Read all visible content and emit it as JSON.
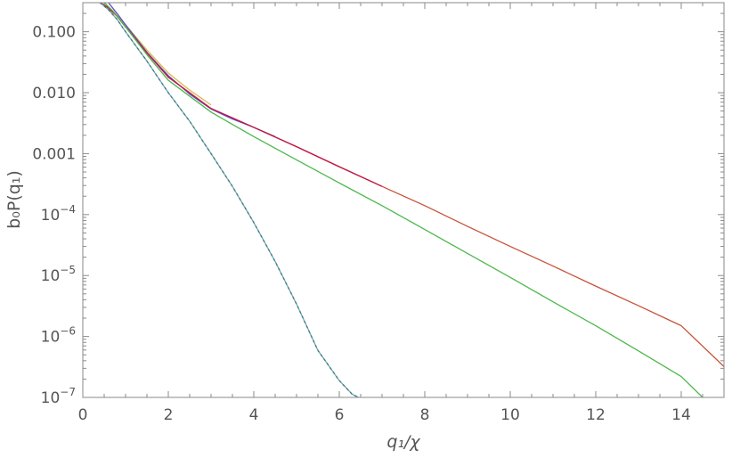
{
  "chart_data": {
    "type": "line",
    "title": "",
    "xlabel": "q₁/χ",
    "ylabel": "b₀P(q₁)",
    "y_scale": "log",
    "xlim": [
      0,
      15
    ],
    "ylim": [
      1e-07,
      0.3
    ],
    "grid": false,
    "x_ticks": [
      0,
      2,
      4,
      6,
      8,
      10,
      12,
      14
    ],
    "x_tick_labels": [
      "0",
      "2",
      "4",
      "6",
      "8",
      "10",
      "12",
      "14"
    ],
    "y_ticks": [
      0.1,
      0.01,
      0.001,
      0.0001,
      1e-05,
      1e-06,
      1e-07
    ],
    "y_tick_labels": [
      {
        "base": "0.100",
        "exp": ""
      },
      {
        "base": "0.010",
        "exp": ""
      },
      {
        "base": "0.001",
        "exp": ""
      },
      {
        "base": "10",
        "exp": "−4"
      },
      {
        "base": "10",
        "exp": "−5"
      },
      {
        "base": "10",
        "exp": "−6"
      },
      {
        "base": "10",
        "exp": "−7"
      }
    ],
    "series": [
      {
        "color": "#c8513a",
        "x": [
          0.4,
          0.6,
          0.8,
          1.0,
          1.5,
          2.0,
          3.0,
          4.0,
          5.0,
          6.0,
          7.0,
          8.0,
          9.0,
          10.0,
          11.0,
          12.0,
          13.0,
          14.0,
          15.0
        ],
        "y": [
          0.3,
          0.24,
          0.18,
          0.12,
          0.045,
          0.018,
          0.0055,
          0.0027,
          0.0013,
          0.00061,
          0.00029,
          0.00014,
          6.4e-05,
          3e-05,
          1.43e-05,
          6.7e-06,
          3.2e-06,
          1.5e-06,
          3.2e-07
        ]
      },
      {
        "color": "#e0b64a",
        "x": [
          0.5,
          0.7,
          1.0,
          1.5,
          2.0,
          2.5,
          3.0
        ],
        "y": [
          0.3,
          0.22,
          0.13,
          0.05,
          0.021,
          0.011,
          0.0063
        ]
      },
      {
        "color": "#5b4fc4",
        "x": [
          0.6,
          0.8,
          1.0,
          1.5,
          2.0,
          2.5,
          3.0,
          3.5,
          4.0,
          4.5
        ],
        "y": [
          0.3,
          0.2,
          0.13,
          0.046,
          0.019,
          0.0095,
          0.0054,
          0.0037,
          0.0027,
          0.0019
        ]
      },
      {
        "color": "#c0184a",
        "x": [
          0.4,
          0.6,
          0.8,
          1.0,
          1.5,
          2.0,
          3.0,
          4.0,
          5.0,
          6.0,
          7.0
        ],
        "y": [
          0.3,
          0.25,
          0.18,
          0.12,
          0.045,
          0.018,
          0.0055,
          0.0027,
          0.0013,
          0.00061,
          0.00029
        ]
      },
      {
        "color": "#4cb84c",
        "x": [
          0.5,
          0.7,
          1.0,
          1.5,
          2.0,
          3.0,
          4.0,
          5.0,
          6.0,
          7.0,
          8.0,
          9.0,
          10.0,
          11.0,
          12.0,
          13.0,
          14.0,
          14.5
        ],
        "y": [
          0.3,
          0.22,
          0.12,
          0.042,
          0.016,
          0.0048,
          0.0019,
          0.00079,
          0.00033,
          0.00014,
          5.7e-05,
          2.3e-05,
          9.3e-06,
          3.7e-06,
          1.5e-06,
          5.8e-07,
          2.2e-07,
          1e-07
        ]
      },
      {
        "color": "#4fb6c6",
        "x": [
          0.4,
          0.6,
          0.8,
          1.0,
          1.5,
          2.0,
          2.5,
          3.0,
          3.5,
          4.0,
          4.5,
          5.0,
          5.5,
          6.0,
          6.3,
          6.45
        ],
        "y": [
          0.3,
          0.23,
          0.16,
          0.1,
          0.033,
          0.01,
          0.0034,
          0.001,
          0.00029,
          7.4e-05,
          1.7e-05,
          3.4e-06,
          5.9e-07,
          1.89e-07,
          1.13e-07,
          1e-07
        ]
      },
      {
        "color": "#6a6a6a",
        "dashed": true,
        "x": [
          0.4,
          0.6,
          0.8,
          1.0,
          1.5,
          2.0,
          2.5,
          3.0,
          3.5,
          4.0,
          4.5,
          5.0,
          5.5,
          6.0,
          6.3,
          6.45
        ],
        "y": [
          0.3,
          0.23,
          0.16,
          0.1,
          0.033,
          0.01,
          0.0034,
          0.001,
          0.00029,
          7.4e-05,
          1.7e-05,
          3.4e-06,
          5.9e-07,
          1.89e-07,
          1.13e-07,
          1e-07
        ]
      }
    ]
  }
}
